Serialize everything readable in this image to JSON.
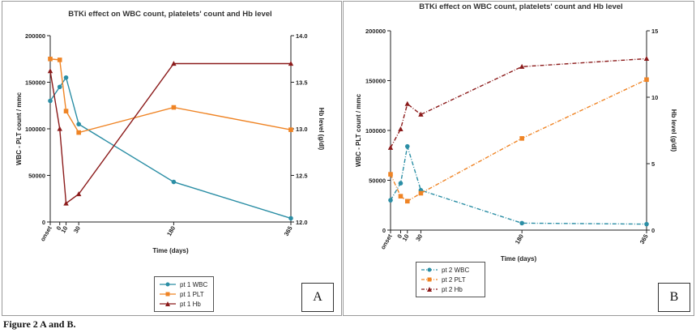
{
  "caption": "Figure 2 A and B.",
  "panel_labels": [
    "A",
    "B"
  ],
  "chart_data": [
    {
      "type": "line",
      "title": "BTKi effect on WBC count, platelets' count and Hb level",
      "xlabel": "Time (days)",
      "ylabel": "WBC - PLT count / mmc",
      "y2label": "Hb level (g/dl)",
      "x_tick_labels": [
        "onset",
        "0",
        "10",
        "30",
        "180",
        "365"
      ],
      "categories_x": [
        -15,
        0,
        10,
        30,
        180,
        365
      ],
      "xlim": [
        -15,
        365
      ],
      "ylim": [
        0,
        200000
      ],
      "y_ticks": [
        "0",
        "50000",
        "100000",
        "150000",
        "200000"
      ],
      "y2lim": [
        12.0,
        14.0
      ],
      "y2_ticks": [
        "12.0",
        "12.5",
        "13.0",
        "13.5",
        "14.0"
      ],
      "series": [
        {
          "name": "pt 1 WBC",
          "axis": "left",
          "color": "#2b8ea5",
          "marker": "circle",
          "dashed": false,
          "values": [
            130000,
            145000,
            155000,
            105000,
            43000,
            4000
          ]
        },
        {
          "name": "pt 1 PLT",
          "axis": "left",
          "color": "#ef8425",
          "marker": "square",
          "dashed": false,
          "values": [
            175000,
            174000,
            119000,
            96000,
            123000,
            99000
          ]
        },
        {
          "name": "pt 1 Hb",
          "axis": "right",
          "color": "#8b1a1a",
          "marker": "triangle",
          "dashed": false,
          "values": [
            13.62,
            13.0,
            12.2,
            12.3,
            13.7,
            13.7
          ]
        }
      ]
    },
    {
      "type": "line",
      "title": "BTKi effect on WBC count, platelets' count and Hb level",
      "xlabel": "Time (days)",
      "ylabel": "WBC - PLT count / mmc",
      "y2label": "Hb level (g/dl)",
      "x_tick_labels": [
        "onset",
        "0",
        "10",
        "30",
        "180",
        "365"
      ],
      "categories_x": [
        -15,
        0,
        10,
        30,
        180,
        365
      ],
      "xlim": [
        -15,
        365
      ],
      "ylim": [
        0,
        200000
      ],
      "y_ticks": [
        "0",
        "50000",
        "100000",
        "150000",
        "200000"
      ],
      "y2lim": [
        0,
        15
      ],
      "y2_ticks": [
        "0",
        "5",
        "10",
        "15"
      ],
      "series": [
        {
          "name": "pt 2 WBC",
          "axis": "left",
          "color": "#2b8ea5",
          "marker": "circle",
          "dashed": true,
          "values": [
            30000,
            47000,
            84000,
            40000,
            7000,
            6000
          ]
        },
        {
          "name": "pt 2 PLT",
          "axis": "left",
          "color": "#ef8425",
          "marker": "square",
          "dashed": true,
          "values": [
            56000,
            34000,
            29000,
            37000,
            92000,
            151000
          ]
        },
        {
          "name": "pt 2 Hb",
          "axis": "right",
          "color": "#8b1a1a",
          "marker": "triangle",
          "dashed": true,
          "values": [
            6.2,
            7.6,
            9.5,
            8.7,
            12.3,
            12.9
          ]
        }
      ]
    }
  ]
}
